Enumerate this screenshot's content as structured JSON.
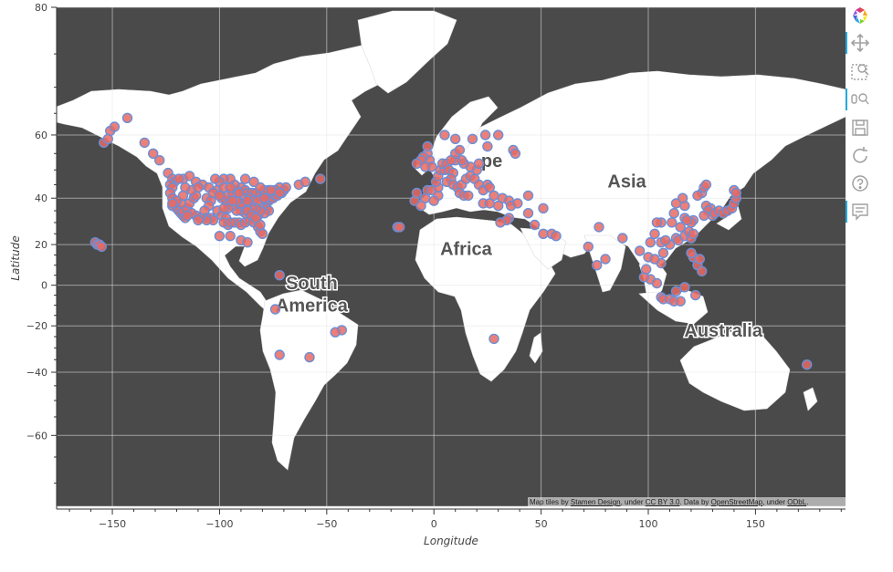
{
  "axes": {
    "xlabel": "Longitude",
    "ylabel": "Latitude",
    "xticks": [
      -150,
      -100,
      -50,
      0,
      50,
      100,
      150
    ],
    "yticks": [
      -60,
      -40,
      -20,
      0,
      20,
      40,
      60,
      80
    ],
    "xrange": [
      -176,
      192
    ],
    "yrange": [
      -74,
      80
    ]
  },
  "map": {
    "continent_labels": [
      {
        "text": "South",
        "lon": -57,
        "lat": -2
      },
      {
        "text": "America",
        "lon": -57,
        "lat": -13
      },
      {
        "text": "Africa",
        "lon": 15,
        "lat": 15
      },
      {
        "text": "pe",
        "lon": 27,
        "lat": 51
      },
      {
        "text": "Asia",
        "lon": 90,
        "lat": 44
      },
      {
        "text": "Australia",
        "lon": 135,
        "lat": -25
      }
    ]
  },
  "attribution": {
    "prefix": "Map tiles by ",
    "stamen": "Stamen Design",
    "mid1": ", under ",
    "ccby": "CC BY 3.0",
    "mid2": ". Data by ",
    "osm": "OpenStreetMap",
    "mid3": ", under ",
    "odbl": "ODbL",
    "suffix": "."
  },
  "toolbar": {
    "tools": [
      "bokeh-logo-icon",
      "pan-icon",
      "box-zoom-icon",
      "wheel-zoom-icon",
      "save-icon",
      "reset-icon",
      "help-icon",
      "hover-icon"
    ]
  },
  "colors": {
    "ocean": "#4a4a4a",
    "land": "#ffffff",
    "point_fill": "#e86a63",
    "point_line": "#6b8ed6",
    "grid": "#e6e6e6"
  },
  "chart_data": {
    "type": "scatter",
    "x_label": "Longitude",
    "y_label": "Latitude",
    "points": [
      [
        -151,
        61
      ],
      [
        -149,
        62
      ],
      [
        -154,
        58
      ],
      [
        -152,
        59
      ],
      [
        -143,
        64
      ],
      [
        -135,
        58
      ],
      [
        -131,
        55
      ],
      [
        -128,
        53
      ],
      [
        -124,
        49
      ],
      [
        -122,
        47
      ],
      [
        -121,
        46
      ],
      [
        -123,
        45
      ],
      [
        -122,
        44
      ],
      [
        -123,
        42
      ],
      [
        -122,
        40
      ],
      [
        -121,
        38
      ],
      [
        -122,
        37
      ],
      [
        -120,
        36
      ],
      [
        -119,
        35
      ],
      [
        -118,
        34
      ],
      [
        -117,
        33
      ],
      [
        -116,
        32
      ],
      [
        -117,
        35
      ],
      [
        -115,
        36
      ],
      [
        -114,
        38
      ],
      [
        -112,
        40
      ],
      [
        -111,
        41
      ],
      [
        -113,
        43
      ],
      [
        -116,
        44
      ],
      [
        -117,
        47
      ],
      [
        -114,
        48
      ],
      [
        -111,
        46
      ],
      [
        -108,
        45
      ],
      [
        -105,
        44
      ],
      [
        -106,
        40
      ],
      [
        -104,
        39
      ],
      [
        -105,
        37
      ],
      [
        -107,
        35
      ],
      [
        -106,
        32
      ],
      [
        -104,
        32
      ],
      [
        -101,
        35
      ],
      [
        -99,
        33
      ],
      [
        -97,
        32
      ],
      [
        -96,
        29
      ],
      [
        -98,
        30
      ],
      [
        -95,
        30
      ],
      [
        -93,
        30
      ],
      [
        -91,
        30
      ],
      [
        -90,
        29
      ],
      [
        -88,
        30
      ],
      [
        -86,
        31
      ],
      [
        -84,
        30
      ],
      [
        -82,
        28
      ],
      [
        -81,
        26
      ],
      [
        -80,
        25
      ],
      [
        -81,
        29
      ],
      [
        -82,
        33
      ],
      [
        -84,
        34
      ],
      [
        -86,
        34
      ],
      [
        -88,
        34
      ],
      [
        -90,
        35
      ],
      [
        -92,
        35
      ],
      [
        -94,
        37
      ],
      [
        -96,
        38
      ],
      [
        -97,
        39
      ],
      [
        -99,
        40
      ],
      [
        -96,
        41
      ],
      [
        -94,
        42
      ],
      [
        -92,
        43
      ],
      [
        -90,
        44
      ],
      [
        -88,
        43
      ],
      [
        -87,
        42
      ],
      [
        -85,
        42
      ],
      [
        -83,
        42
      ],
      [
        -81,
        41
      ],
      [
        -80,
        40
      ],
      [
        -78,
        39
      ],
      [
        -77,
        39
      ],
      [
        -76,
        40
      ],
      [
        -75,
        40
      ],
      [
        -74,
        41
      ],
      [
        -73,
        41
      ],
      [
        -71,
        42
      ],
      [
        -70,
        43
      ],
      [
        -69,
        44
      ],
      [
        -72,
        44
      ],
      [
        -77,
        43
      ],
      [
        -79,
        43
      ],
      [
        -81,
        44
      ],
      [
        -84,
        46
      ],
      [
        -88,
        47
      ],
      [
        -93,
        45
      ],
      [
        -95,
        47
      ],
      [
        -98,
        47
      ],
      [
        -100,
        46
      ],
      [
        -102,
        47
      ],
      [
        -101,
        43
      ],
      [
        -98,
        44
      ],
      [
        -95,
        44
      ],
      [
        -89,
        40
      ],
      [
        -86,
        40
      ],
      [
        -84,
        39
      ],
      [
        -82,
        39
      ],
      [
        -80,
        36
      ],
      [
        -78,
        36
      ],
      [
        -77,
        35
      ],
      [
        -79,
        34
      ],
      [
        -81,
        35
      ],
      [
        -83,
        36
      ],
      [
        -85,
        36
      ],
      [
        -87,
        37
      ],
      [
        -89,
        37
      ],
      [
        -90,
        38
      ],
      [
        -92,
        39
      ],
      [
        -94,
        39
      ],
      [
        -96,
        36
      ],
      [
        -98,
        36
      ],
      [
        -103,
        31
      ],
      [
        -106,
        31
      ],
      [
        -109,
        32
      ],
      [
        -111,
        33
      ],
      [
        -113,
        34
      ],
      [
        -115,
        33
      ],
      [
        -118,
        38
      ],
      [
        -120,
        39
      ],
      [
        -122,
        38
      ],
      [
        -119,
        47
      ],
      [
        -117,
        41
      ],
      [
        -110,
        44
      ],
      [
        -103,
        42
      ],
      [
        -100,
        41
      ],
      [
        -87,
        35
      ],
      [
        -85,
        33
      ],
      [
        -83,
        32
      ],
      [
        -87,
        39
      ],
      [
        -91,
        42
      ],
      [
        -79,
        40
      ],
      [
        -74,
        43
      ],
      [
        -76,
        43
      ],
      [
        -72,
        42
      ],
      [
        -63,
        45
      ],
      [
        -60,
        46
      ],
      [
        -53,
        47
      ],
      [
        -110,
        31
      ],
      [
        -100,
        24
      ],
      [
        -95,
        24
      ],
      [
        -90,
        22
      ],
      [
        -87,
        21
      ],
      [
        -158,
        21
      ],
      [
        -157,
        20
      ],
      [
        -156,
        20
      ],
      [
        -155,
        19
      ],
      [
        -72,
        5
      ],
      [
        -58,
        -34
      ],
      [
        -72,
        -33
      ],
      [
        -43,
        -22
      ],
      [
        -46,
        -23
      ],
      [
        -74,
        -12
      ],
      [
        -9,
        39
      ],
      [
        -8,
        42
      ],
      [
        -4,
        40
      ],
      [
        -3,
        43
      ],
      [
        -1,
        43
      ],
      [
        2,
        41
      ],
      [
        -6,
        37
      ],
      [
        0,
        39
      ],
      [
        2,
        44
      ],
      [
        1,
        46
      ],
      [
        2,
        48
      ],
      [
        3,
        50
      ],
      [
        5,
        50
      ],
      [
        4,
        52
      ],
      [
        6,
        52
      ],
      [
        7,
        50
      ],
      [
        9,
        49
      ],
      [
        8,
        47
      ],
      [
        6,
        46
      ],
      [
        9,
        45
      ],
      [
        11,
        44
      ],
      [
        12,
        42
      ],
      [
        14,
        41
      ],
      [
        16,
        41
      ],
      [
        13,
        45
      ],
      [
        15,
        47
      ],
      [
        17,
        48
      ],
      [
        19,
        47
      ],
      [
        21,
        45
      ],
      [
        23,
        43
      ],
      [
        25,
        45
      ],
      [
        26,
        44
      ],
      [
        20,
        50
      ],
      [
        21,
        52
      ],
      [
        17,
        51
      ],
      [
        14,
        52
      ],
      [
        13,
        53
      ],
      [
        10,
        53
      ],
      [
        10,
        55
      ],
      [
        12,
        56
      ],
      [
        18,
        59
      ],
      [
        24,
        60
      ],
      [
        25,
        57
      ],
      [
        10,
        59
      ],
      [
        5,
        60
      ],
      [
        -3,
        55
      ],
      [
        -2,
        53
      ],
      [
        -1,
        51
      ],
      [
        -5,
        54
      ],
      [
        -6,
        53
      ],
      [
        -8,
        52
      ],
      [
        -4,
        51
      ],
      [
        -3,
        57
      ],
      [
        8,
        53
      ],
      [
        30,
        60
      ],
      [
        37,
        56
      ],
      [
        38,
        55
      ],
      [
        23,
        38
      ],
      [
        26,
        38
      ],
      [
        28,
        41
      ],
      [
        32,
        40
      ],
      [
        35,
        39
      ],
      [
        30,
        37
      ],
      [
        36,
        37
      ],
      [
        39,
        38
      ],
      [
        35,
        32
      ],
      [
        34,
        31
      ],
      [
        31,
        30
      ],
      [
        44,
        34
      ],
      [
        47,
        29
      ],
      [
        51,
        25
      ],
      [
        55,
        25
      ],
      [
        57,
        24
      ],
      [
        51,
        36
      ],
      [
        44,
        41
      ],
      [
        28,
        -26
      ],
      [
        -17,
        28
      ],
      [
        -16,
        28
      ],
      [
        72,
        19
      ],
      [
        77,
        28
      ],
      [
        88,
        23
      ],
      [
        80,
        13
      ],
      [
        76,
        10
      ],
      [
        100,
        14
      ],
      [
        101,
        3
      ],
      [
        104,
        1
      ],
      [
        106,
        11
      ],
      [
        106,
        21
      ],
      [
        107,
        16
      ],
      [
        113,
        23
      ],
      [
        114,
        22
      ],
      [
        115,
        28
      ],
      [
        117,
        32
      ],
      [
        117,
        24
      ],
      [
        119,
        26
      ],
      [
        120,
        23
      ],
      [
        121,
        25
      ],
      [
        121,
        31
      ],
      [
        120,
        30
      ],
      [
        118,
        31
      ],
      [
        117,
        37
      ],
      [
        116,
        40
      ],
      [
        113,
        38
      ],
      [
        112,
        34
      ],
      [
        111,
        30
      ],
      [
        110,
        20
      ],
      [
        108,
        22
      ],
      [
        106,
        30
      ],
      [
        104,
        30
      ],
      [
        103,
        25
      ],
      [
        125,
        42
      ],
      [
        123,
        41
      ],
      [
        126,
        44
      ],
      [
        127,
        45
      ],
      [
        129,
        36
      ],
      [
        127,
        37
      ],
      [
        128,
        35
      ],
      [
        126,
        33
      ],
      [
        130,
        33
      ],
      [
        131,
        34
      ],
      [
        133,
        35
      ],
      [
        135,
        34
      ],
      [
        137,
        35
      ],
      [
        139,
        36
      ],
      [
        140,
        38
      ],
      [
        141,
        40
      ],
      [
        140,
        43
      ],
      [
        141,
        42
      ],
      [
        121,
        14
      ],
      [
        123,
        10
      ],
      [
        125,
        7
      ],
      [
        124,
        13
      ],
      [
        120,
        16
      ],
      [
        106,
        -6
      ],
      [
        107,
        -7
      ],
      [
        110,
        -7
      ],
      [
        112,
        -8
      ],
      [
        115,
        -8
      ],
      [
        113,
        -3
      ],
      [
        117,
        -1
      ],
      [
        122,
        -5
      ],
      [
        98,
        4
      ],
      [
        96,
        17
      ],
      [
        101,
        21
      ],
      [
        99,
        8
      ],
      [
        103,
        13
      ],
      [
        174,
        -37
      ]
    ]
  }
}
